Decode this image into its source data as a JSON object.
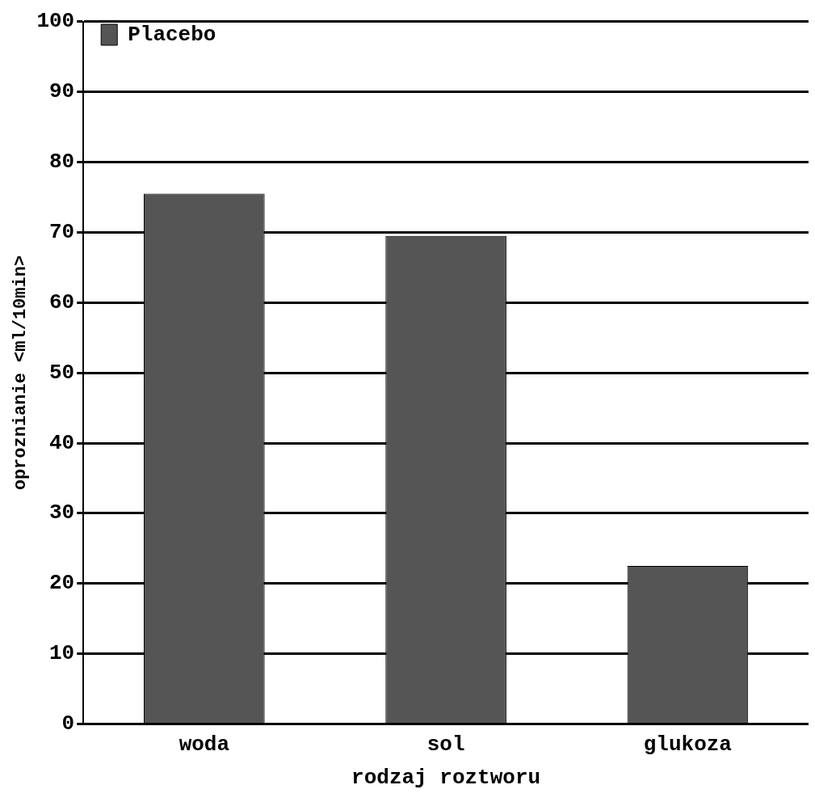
{
  "chart_data": {
    "type": "bar",
    "xlabel": "rodzaj roztworu",
    "ylabel": "oproznianie <ml/10min>",
    "categories": [
      "woda",
      "sol",
      "glukoza"
    ],
    "series": [
      {
        "name": "Placebo",
        "color": "#555555",
        "values": [
          75.5,
          69.5,
          22.5
        ]
      }
    ],
    "ylim": [
      0,
      100
    ],
    "yticks": [
      0,
      10,
      20,
      30,
      40,
      50,
      60,
      70,
      80,
      90,
      100
    ],
    "grid": "y",
    "legend": "top left"
  }
}
